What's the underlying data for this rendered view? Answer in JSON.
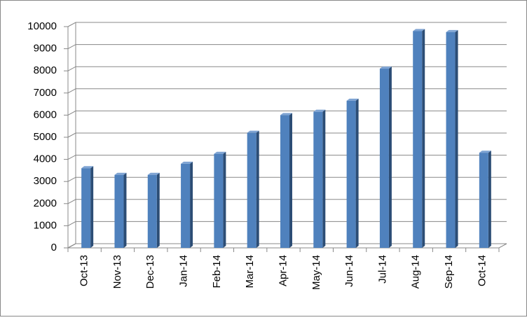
{
  "chart_data": {
    "type": "bar",
    "categories": [
      "Oct-13",
      "Nov-13",
      "Dec-13",
      "Jan-14",
      "Feb-14",
      "Mar-14",
      "Apr-14",
      "May-14",
      "Jun-14",
      "Jul-14",
      "Aug-14",
      "Sep-14",
      "Oct-14"
    ],
    "values": [
      3600,
      3300,
      3300,
      3800,
      4250,
      5200,
      6000,
      6150,
      6650,
      8100,
      9800,
      9750,
      4300
    ],
    "color": "#4f81bd",
    "ylim": [
      0,
      10000
    ],
    "yticks": [
      0,
      1000,
      2000,
      3000,
      4000,
      5000,
      6000,
      7000,
      8000,
      9000,
      10000
    ],
    "grid": true
  }
}
